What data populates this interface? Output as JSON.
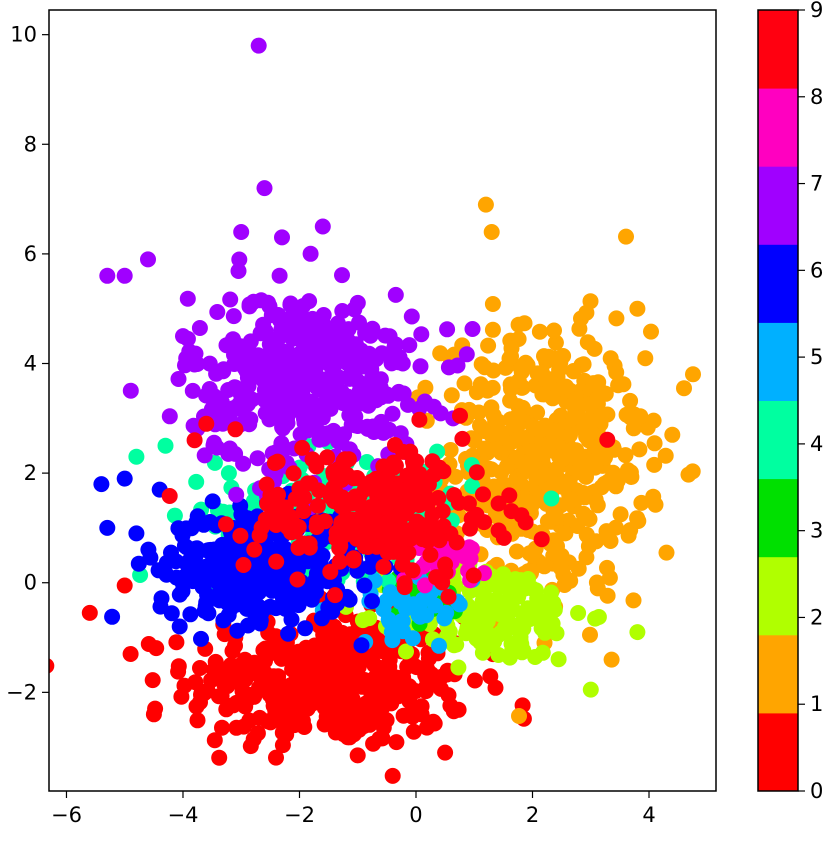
{
  "chart_data": {
    "type": "scatter",
    "title": "",
    "xlabel": "",
    "ylabel": "",
    "xlim": [
      -6.3,
      5.15
    ],
    "ylim": [
      -3.8,
      10.45
    ],
    "x_ticks": [
      -6,
      -4,
      -2,
      0,
      2,
      4
    ],
    "x_tick_labels": [
      "−6",
      "−4",
      "−2",
      "0",
      "2",
      "4"
    ],
    "y_ticks": [
      -2,
      0,
      2,
      4,
      6,
      8,
      10
    ],
    "y_tick_labels": [
      "−2",
      "0",
      "2",
      "4",
      "6",
      "8",
      "10"
    ],
    "grid": false,
    "colorbar": {
      "range": [
        0,
        9
      ],
      "ticks": [
        0,
        1,
        2,
        3,
        4,
        5,
        6,
        7,
        8,
        9
      ],
      "tick_labels": [
        "0",
        "1",
        "2",
        "3",
        "4",
        "5",
        "6",
        "7",
        "8",
        "9"
      ],
      "band_colors": [
        "#ff0000",
        "#ffa500",
        "#b0ff00",
        "#00e000",
        "#00ffa0",
        "#00b0ff",
        "#0000ff",
        "#a000ff",
        "#ff00c0",
        "#ff0010"
      ]
    },
    "series": [
      {
        "class": 0,
        "color": "#ff0000",
        "center": [
          -1.5,
          -1.8
        ],
        "spread": [
          1.2,
          0.6
        ],
        "points": 420,
        "outliers": [
          [
            -5.6,
            -0.55
          ],
          [
            -4.9,
            -1.3
          ],
          [
            -4.5,
            -2.4
          ],
          [
            -1.0,
            -3.15
          ],
          [
            0.5,
            -3.1
          ],
          [
            -4.0,
            0.9
          ],
          [
            -5.0,
            -0.05
          ]
        ]
      },
      {
        "class": 1,
        "color": "#ffa500",
        "center": [
          2.2,
          2.2
        ],
        "spread": [
          0.85,
          1.2
        ],
        "points": 480,
        "outliers": [
          [
            1.2,
            6.9
          ],
          [
            1.3,
            6.4
          ],
          [
            4.6,
            3.55
          ],
          [
            4.3,
            0.55
          ],
          [
            3.8,
            5.0
          ],
          [
            0.7,
            0.9
          ],
          [
            4.4,
            2.7
          ]
        ]
      },
      {
        "class": 2,
        "color": "#b0ff00",
        "center": [
          1.3,
          -0.55
        ],
        "spread": [
          0.8,
          0.45
        ],
        "points": 170,
        "outliers": [
          [
            3.8,
            -0.9
          ],
          [
            3.0,
            -1.95
          ],
          [
            -1.6,
            0.8
          ]
        ]
      },
      {
        "class": 3,
        "color": "#00e000",
        "center": [
          0.1,
          -0.3
        ],
        "spread": [
          0.35,
          0.25
        ],
        "points": 30,
        "outliers": []
      },
      {
        "class": 4,
        "color": "#00ffa0",
        "center": [
          -1.2,
          1.3
        ],
        "spread": [
          1.1,
          0.55
        ],
        "points": 180,
        "outliers": [
          [
            -4.8,
            2.3
          ],
          [
            -4.3,
            2.5
          ],
          [
            -2.0,
            2.1
          ]
        ]
      },
      {
        "class": 5,
        "color": "#00b0ff",
        "center": [
          0.0,
          -0.35
        ],
        "spread": [
          0.5,
          0.3
        ],
        "points": 40,
        "outliers": [
          [
            -2.2,
            0.4
          ],
          [
            0.5,
            0.7
          ],
          [
            -1.6,
            -0.5
          ]
        ]
      },
      {
        "class": 6,
        "color": "#0000ff",
        "center": [
          -2.7,
          0.3
        ],
        "spread": [
          0.85,
          0.5
        ],
        "points": 380,
        "outliers": [
          [
            -5.4,
            1.8
          ],
          [
            -5.0,
            1.9
          ],
          [
            -5.3,
            1.0
          ],
          [
            -4.8,
            0.9
          ],
          [
            -4.4,
            1.7
          ]
        ]
      },
      {
        "class": 7,
        "color": "#a000ff",
        "center": [
          -1.9,
          3.7
        ],
        "spread": [
          1.0,
          0.8
        ],
        "points": 430,
        "outliers": [
          [
            -2.7,
            9.8
          ],
          [
            -2.6,
            7.2
          ],
          [
            -5.3,
            5.6
          ],
          [
            -5.0,
            5.6
          ],
          [
            -4.6,
            5.9
          ],
          [
            -3.0,
            6.4
          ],
          [
            -2.3,
            6.3
          ],
          [
            -1.6,
            6.5
          ],
          [
            -4.0,
            4.5
          ]
        ]
      },
      {
        "class": 8,
        "color": "#ff00c0",
        "center": [
          0.6,
          0.4
        ],
        "spread": [
          0.3,
          0.2
        ],
        "points": 25,
        "outliers": []
      },
      {
        "class": 9,
        "color": "#ff0010",
        "center": [
          -0.7,
          1.3
        ],
        "spread": [
          1.1,
          0.6
        ],
        "points": 240,
        "outliers": [
          [
            -3.6,
            2.9
          ],
          [
            -3.8,
            2.6
          ],
          [
            -3.1,
            2.8
          ],
          [
            0.4,
            2.1
          ]
        ]
      }
    ]
  }
}
